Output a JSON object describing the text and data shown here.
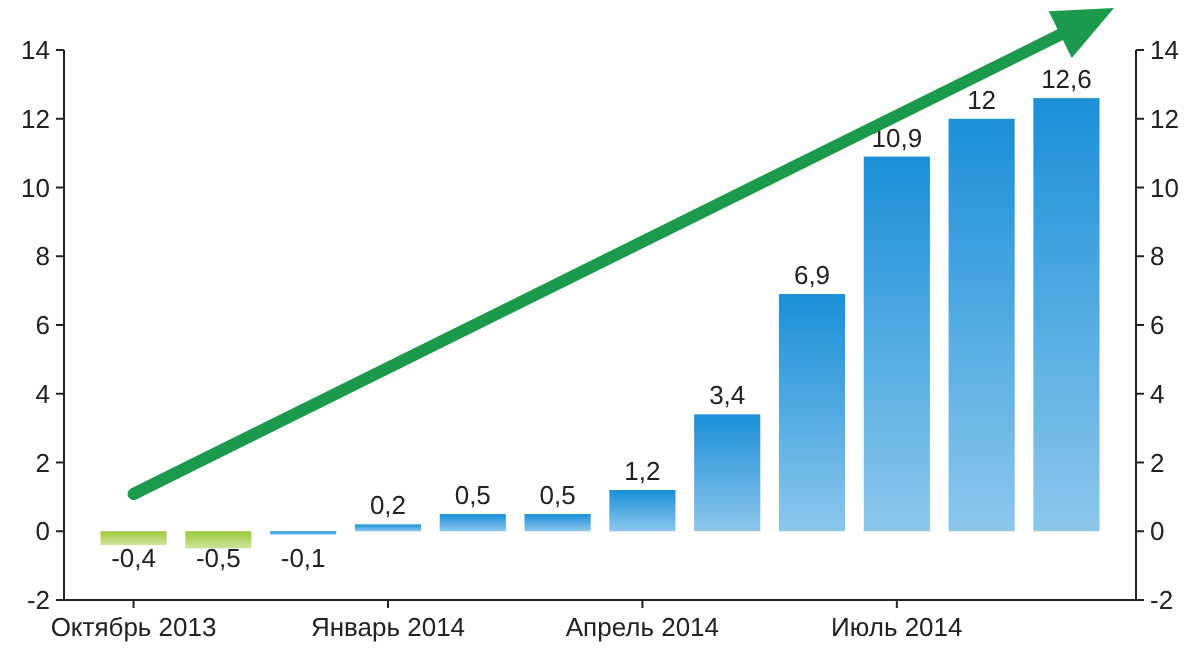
{
  "chart_data": {
    "type": "bar",
    "categories": [
      "Октябрь 2013",
      null,
      null,
      "Январь 2014",
      null,
      null,
      "Апрель 2014",
      null,
      null,
      "Июль 2014",
      null,
      null
    ],
    "values": [
      -0.4,
      -0.5,
      -0.1,
      0.2,
      0.5,
      0.5,
      1.2,
      3.4,
      6.9,
      10.9,
      12,
      12.6
    ],
    "colors": [
      "#9cc83a",
      "#9cc83a",
      "#1a8fd8",
      "#1a8fd8",
      "#1a8fd8",
      "#1a8fd8",
      "#1a8fd8",
      "#1a8fd8",
      "#1a8fd8",
      "#1a8fd8",
      "#1a8fd8",
      "#1a8fd8"
    ],
    "value_labels": [
      "-0,4",
      "-0,5",
      "-0,1",
      "0,2",
      "0,5",
      "0,5",
      "1,2",
      "3,4",
      "6,9",
      "10,9",
      "12",
      "12,6"
    ],
    "ylim": [
      -2,
      14
    ],
    "yticks": [
      -2,
      0,
      2,
      4,
      6,
      8,
      10,
      12,
      14
    ],
    "y2lim": [
      -2,
      14
    ],
    "y2ticks": [
      -2,
      0,
      2,
      4,
      6,
      8,
      10,
      12,
      14
    ],
    "grid": false
  }
}
